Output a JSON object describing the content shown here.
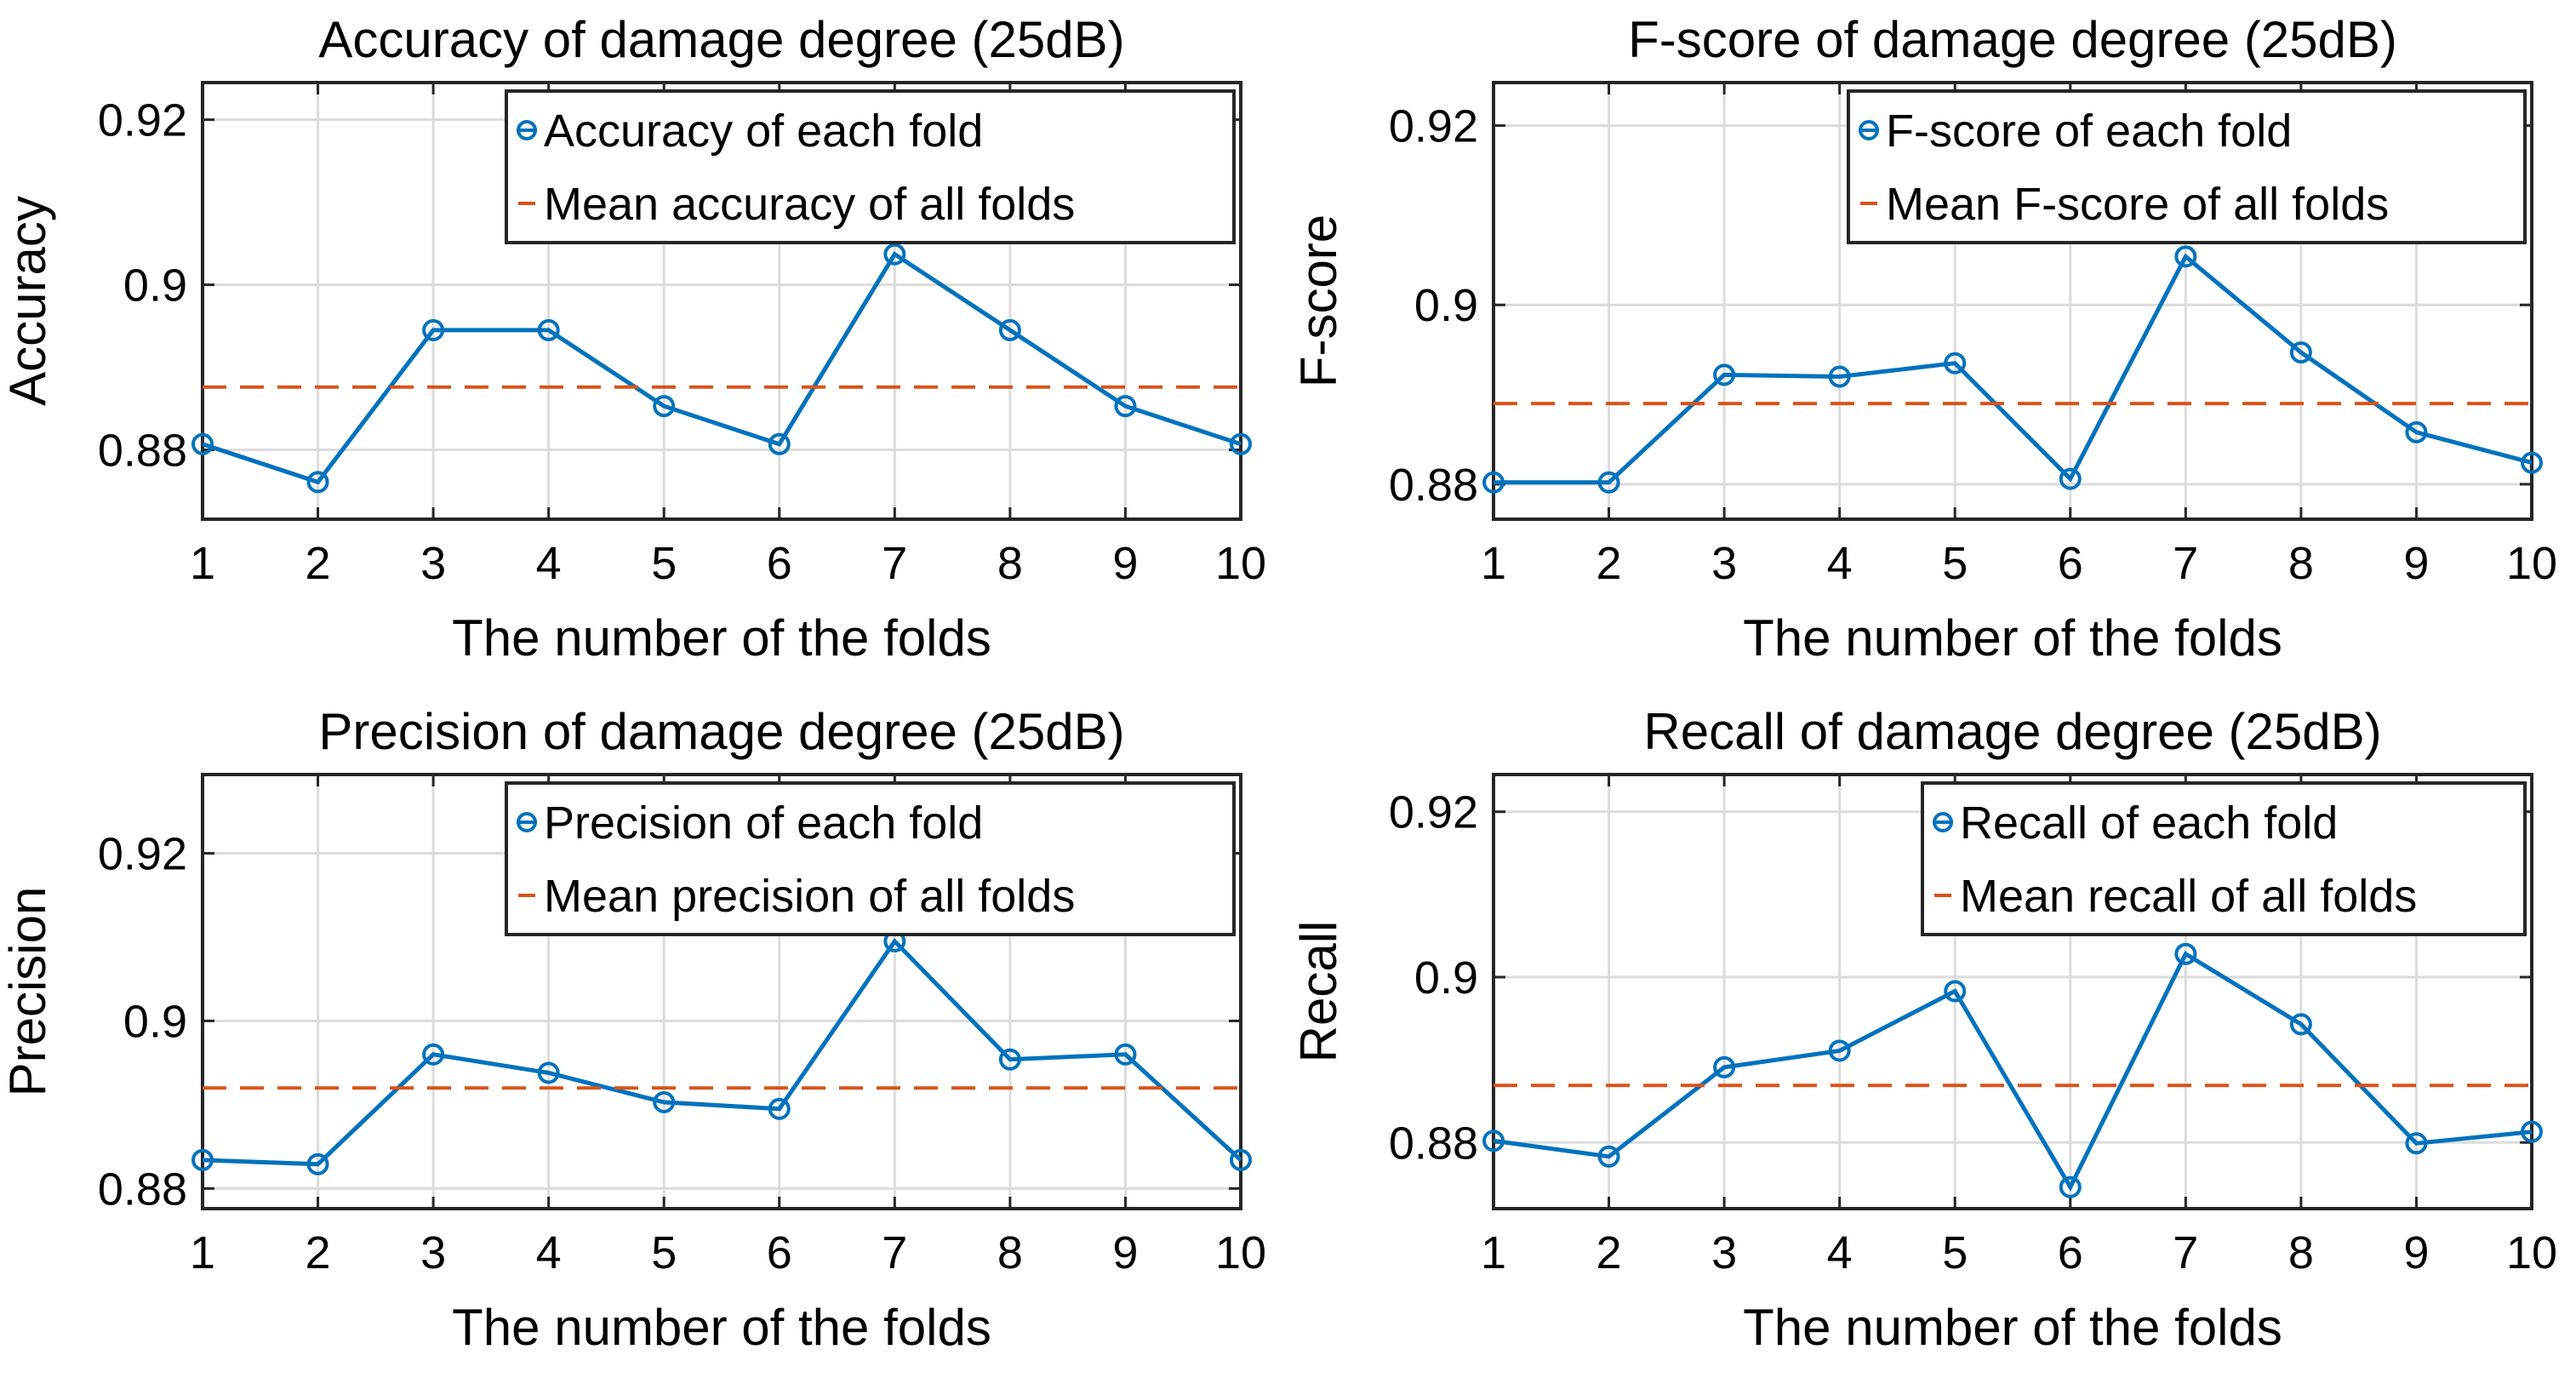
{
  "chart_data": [
    {
      "type": "line",
      "title": "Accuracy of damage degree (25dB)",
      "xlabel": "The number of the folds",
      "ylabel": "Accuracy",
      "x": [
        1,
        2,
        3,
        4,
        5,
        6,
        7,
        8,
        9,
        10
      ],
      "xlim": [
        1,
        10
      ],
      "ylim": [
        0.8716,
        0.9245
      ],
      "yticks": [
        0.88,
        0.9,
        0.92
      ],
      "ytick_labels": [
        "0.88",
        "0.9",
        "0.92"
      ],
      "grid": true,
      "legend_position": "top-right",
      "series": [
        {
          "name": "Accuracy of each fold",
          "color": "#0072BD",
          "marker": "circle",
          "style": "solid",
          "values": [
            0.8807,
            0.8761,
            0.8945,
            0.8945,
            0.8853,
            0.8807,
            0.9037,
            0.8945,
            0.8853,
            0.8807
          ]
        },
        {
          "name": "Mean accuracy of all folds",
          "color": "#D95319",
          "marker": "none",
          "style": "dashed",
          "values": [
            0.8876,
            0.8876,
            0.8876,
            0.8876,
            0.8876,
            0.8876,
            0.8876,
            0.8876,
            0.8876,
            0.8876
          ]
        }
      ]
    },
    {
      "type": "line",
      "title": "F-score of damage degree (25dB)",
      "xlabel": "The number of the folds",
      "ylabel": "F-score",
      "x": [
        1,
        2,
        3,
        4,
        5,
        6,
        7,
        8,
        9,
        10
      ],
      "xlim": [
        1,
        10
      ],
      "ylim": [
        0.8761,
        0.9248
      ],
      "yticks": [
        0.88,
        0.9,
        0.92
      ],
      "ytick_labels": [
        "0.88",
        "0.9",
        "0.92"
      ],
      "grid": true,
      "legend_position": "top-right",
      "series": [
        {
          "name": "F-score of each fold",
          "color": "#0072BD",
          "marker": "circle",
          "style": "solid",
          "values": [
            0.8802,
            0.8802,
            0.8922,
            0.892,
            0.8935,
            0.8806,
            0.9054,
            0.8947,
            0.8858,
            0.8824
          ]
        },
        {
          "name": "Mean F-score of all folds",
          "color": "#D95319",
          "marker": "none",
          "style": "dashed",
          "values": [
            0.889,
            0.889,
            0.889,
            0.889,
            0.889,
            0.889,
            0.889,
            0.889,
            0.889,
            0.889
          ]
        }
      ]
    },
    {
      "type": "line",
      "title": "Precision of damage degree (25dB)",
      "xlabel": "The number of the folds",
      "ylabel": "Precision",
      "x": [
        1,
        2,
        3,
        4,
        5,
        6,
        7,
        8,
        9,
        10
      ],
      "xlim": [
        1,
        10
      ],
      "ylim": [
        0.8776,
        0.9294
      ],
      "yticks": [
        0.88,
        0.9,
        0.92
      ],
      "ytick_labels": [
        "0.88",
        "0.9",
        "0.92"
      ],
      "grid": true,
      "legend_position": "top-right",
      "series": [
        {
          "name": "Precision of each fold",
          "color": "#0072BD",
          "marker": "circle",
          "style": "solid",
          "values": [
            0.8834,
            0.8829,
            0.896,
            0.8938,
            0.8903,
            0.8895,
            0.9095,
            0.8954,
            0.896,
            0.8834
          ]
        },
        {
          "name": "Mean precision of all folds",
          "color": "#D95319",
          "marker": "none",
          "style": "dashed",
          "values": [
            0.892,
            0.892,
            0.892,
            0.892,
            0.892,
            0.892,
            0.892,
            0.892,
            0.892,
            0.892
          ]
        }
      ]
    },
    {
      "type": "line",
      "title": "Recall of damage degree (25dB)",
      "xlabel": "The number of the folds",
      "ylabel": "Recall",
      "x": [
        1,
        2,
        3,
        4,
        5,
        6,
        7,
        8,
        9,
        10
      ],
      "xlim": [
        1,
        10
      ],
      "ylim": [
        0.872,
        0.9245
      ],
      "yticks": [
        0.88,
        0.9,
        0.92
      ],
      "ytick_labels": [
        "0.88",
        "0.9",
        "0.92"
      ],
      "grid": true,
      "legend_position": "top-right",
      "series": [
        {
          "name": "Recall of each fold",
          "color": "#0072BD",
          "marker": "circle",
          "style": "solid",
          "values": [
            0.8802,
            0.8783,
            0.8891,
            0.8911,
            0.8983,
            0.8746,
            0.9028,
            0.8943,
            0.8799,
            0.8813
          ]
        },
        {
          "name": "Mean recall of all folds",
          "color": "#D95319",
          "marker": "none",
          "style": "dashed",
          "values": [
            0.8869,
            0.8869,
            0.8869,
            0.8869,
            0.8869,
            0.8869,
            0.8869,
            0.8869,
            0.8869,
            0.8869
          ]
        }
      ]
    }
  ]
}
